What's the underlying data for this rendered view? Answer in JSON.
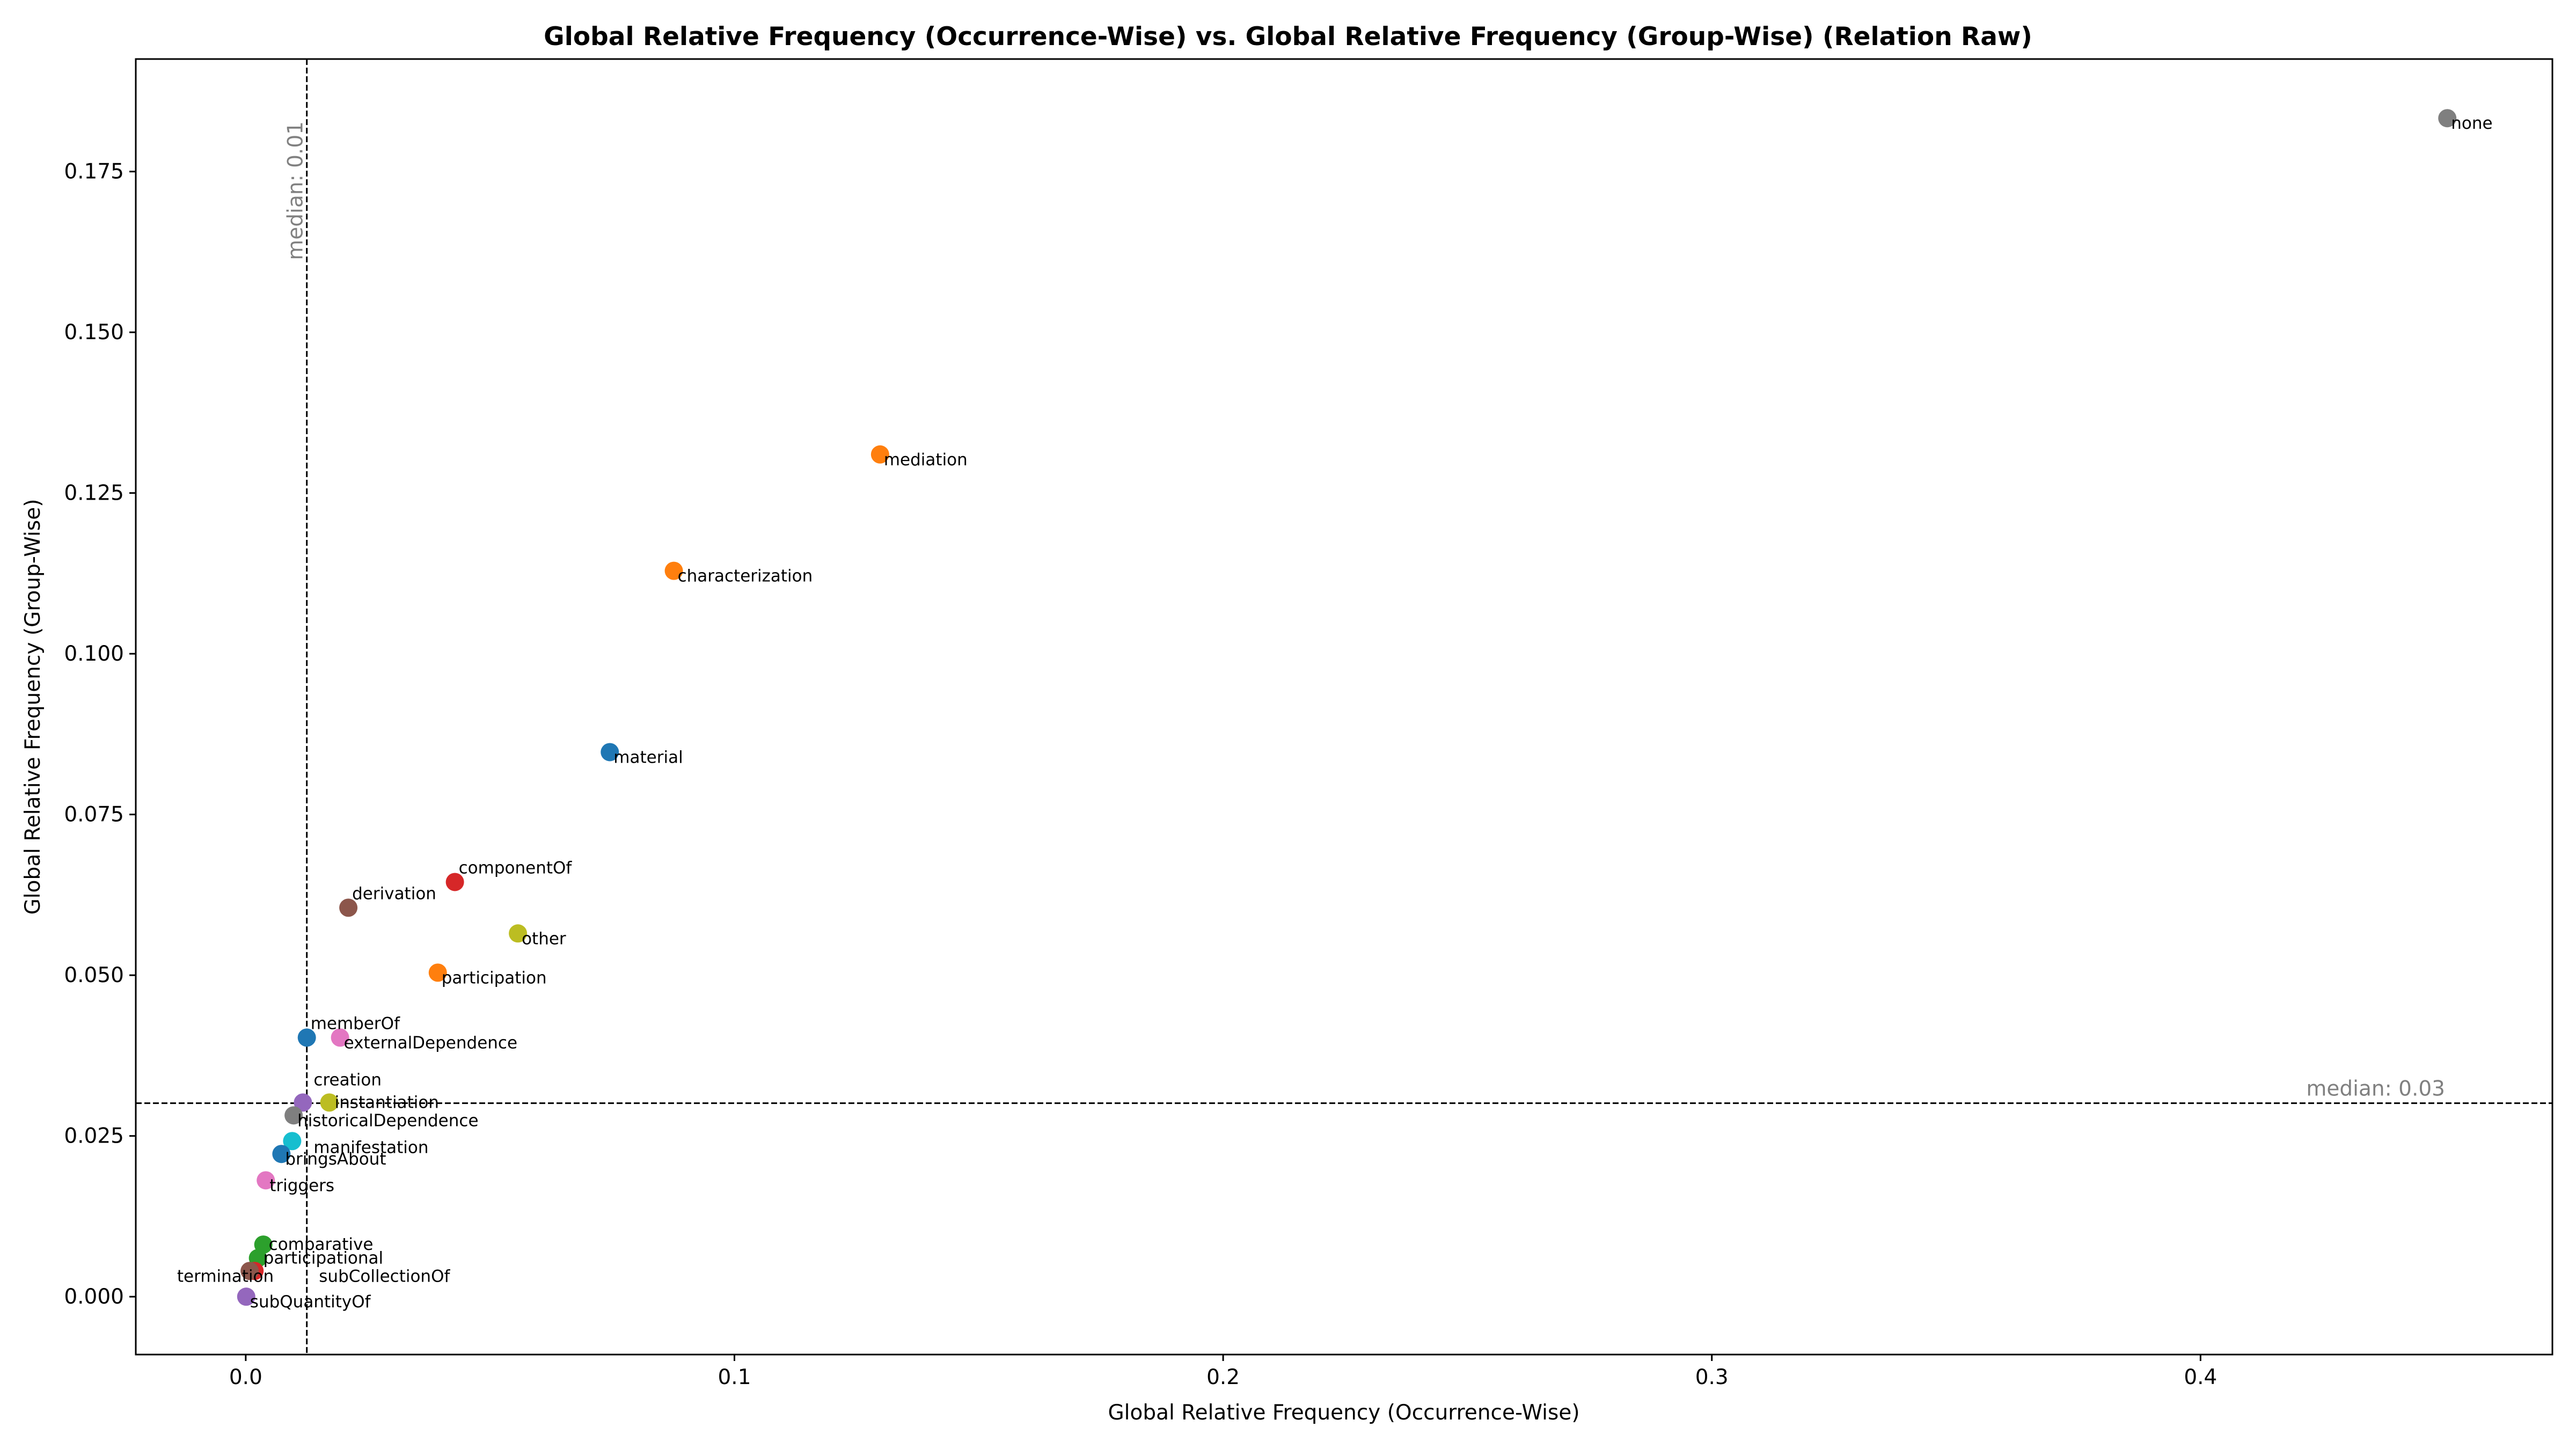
{
  "chart_data": {
    "type": "scatter",
    "title": "Global Relative Frequency (Occurrence-Wise) vs. Global Relative Frequency (Group-Wise) (Relation Raw)",
    "xlabel": "Global Relative Frequency (Occurrence-Wise)",
    "ylabel": "Global Relative Frequency (Group-Wise)",
    "xlim": [
      -0.0225,
      0.472
    ],
    "ylim": [
      -0.009,
      0.1925
    ],
    "xticks": [
      0.0,
      0.1,
      0.2,
      0.3,
      0.4
    ],
    "xtick_labels": [
      "0.0",
      "0.1",
      "0.2",
      "0.3",
      "0.4"
    ],
    "yticks": [
      0.0,
      0.025,
      0.05,
      0.075,
      0.1,
      0.125,
      0.15,
      0.175
    ],
    "ytick_labels": [
      "0.000",
      "0.025",
      "0.050",
      "0.075",
      "0.100",
      "0.125",
      "0.150",
      "0.175"
    ],
    "grid": false,
    "medians": {
      "x": {
        "value": 0.0125,
        "label": "median: 0.01"
      },
      "y": {
        "value": 0.0301,
        "label": "median: 0.03"
      }
    },
    "points": [
      {
        "label": "none",
        "x": 0.4505,
        "y": 0.1833,
        "color": "#7f7f7f",
        "anchor": "br"
      },
      {
        "label": "mediation",
        "x": 0.1298,
        "y": 0.131,
        "color": "#ff7f0e",
        "anchor": "br"
      },
      {
        "label": "characterization",
        "x": 0.0876,
        "y": 0.1129,
        "color": "#ff7f0e",
        "anchor": "br"
      },
      {
        "label": "material",
        "x": 0.0745,
        "y": 0.0847,
        "color": "#1f77b4",
        "anchor": "br"
      },
      {
        "label": "componentOf",
        "x": 0.0428,
        "y": 0.0645,
        "color": "#d62728",
        "anchor": "tr"
      },
      {
        "label": "derivation",
        "x": 0.021,
        "y": 0.0605,
        "color": "#8c564b",
        "anchor": "tr"
      },
      {
        "label": "other",
        "x": 0.0557,
        "y": 0.0565,
        "color": "#bcbd22",
        "anchor": "br"
      },
      {
        "label": "participation",
        "x": 0.0393,
        "y": 0.0504,
        "color": "#ff7f0e",
        "anchor": "br"
      },
      {
        "label": "memberOf",
        "x": 0.0125,
        "y": 0.0403,
        "color": "#1f77b4",
        "anchor": "tr"
      },
      {
        "label": "externalDependence",
        "x": 0.0193,
        "y": 0.0403,
        "color": "#e377c2",
        "anchor": "br"
      },
      {
        "label": "creation",
        "x": 0.0117,
        "y": 0.0302,
        "color": "#9467bd",
        "anchor": "tr2"
      },
      {
        "label": "instantiation",
        "x": 0.0171,
        "y": 0.0302,
        "color": "#bcbd22",
        "anchor": "r"
      },
      {
        "label": "historicalDependence",
        "x": 0.0098,
        "y": 0.0282,
        "color": "#7f7f7f",
        "anchor": "br"
      },
      {
        "label": "manifestation",
        "x": 0.0095,
        "y": 0.0242,
        "color": "#17becf",
        "anchor": "br2"
      },
      {
        "label": "bringsAbout",
        "x": 0.0073,
        "y": 0.0222,
        "color": "#1f77b4",
        "anchor": "br"
      },
      {
        "label": "triggers",
        "x": 0.0041,
        "y": 0.0181,
        "color": "#e377c2",
        "anchor": "br"
      },
      {
        "label": "comparative",
        "x": 0.0036,
        "y": 0.0081,
        "color": "#2ca02c",
        "anchor": "r"
      },
      {
        "label": "participational",
        "x": 0.0025,
        "y": 0.006,
        "color": "#2ca02c",
        "anchor": "r"
      },
      {
        "label": "subCollectionOf",
        "x": 0.0018,
        "y": 0.004,
        "color": "#d62728",
        "anchor": "br3"
      },
      {
        "label": "termination",
        "x": 0.0008,
        "y": 0.004,
        "color": "#8c564b",
        "anchor": "bl"
      },
      {
        "label": "subQuantityOf",
        "x": 0.0001,
        "y": 0.0,
        "color": "#9467bd",
        "anchor": "br"
      }
    ]
  }
}
